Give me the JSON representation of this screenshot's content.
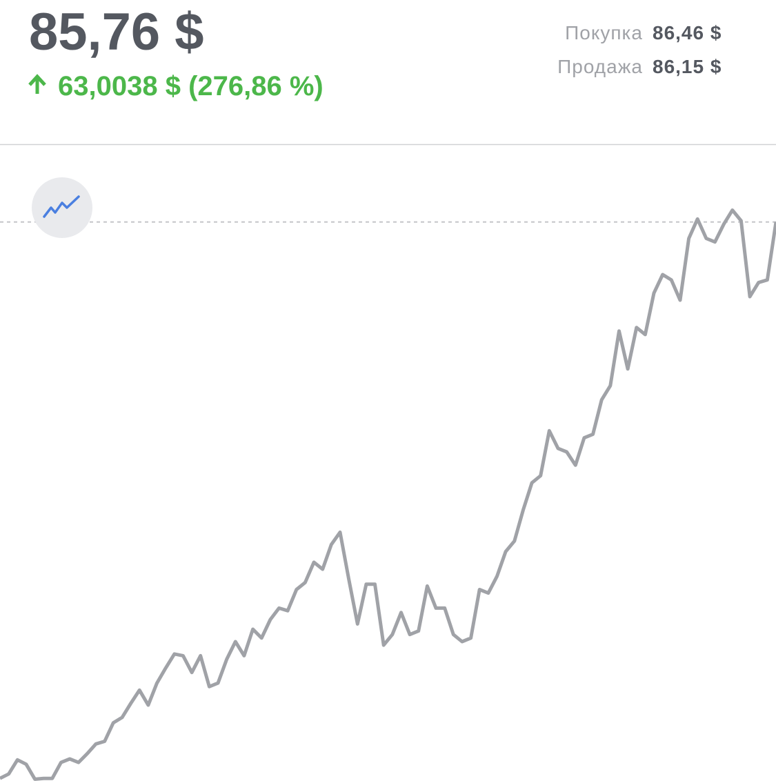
{
  "header": {
    "price": "85,76 $",
    "change": "63,0038 $ (276,86 %)"
  },
  "quotes": [
    {
      "label": "Покупка",
      "value": "86,46 $"
    },
    {
      "label": "Продажа",
      "value": "86,15 $"
    }
  ],
  "chart_data": {
    "type": "line",
    "color": "#a0a2a7",
    "ylim": [
      22.4,
      94.5
    ],
    "values": [
      22.7,
      23.2,
      24.8,
      24.3,
      22.6,
      22.7,
      22.7,
      24.5,
      24.9,
      24.5,
      25.5,
      26.6,
      26.9,
      29.0,
      29.6,
      31.2,
      32.7,
      31.0,
      33.5,
      35.2,
      36.8,
      36.6,
      34.7,
      36.6,
      33.1,
      33.5,
      36.2,
      38.2,
      36.6,
      39.6,
      38.6,
      40.7,
      42.0,
      41.7,
      44.1,
      44.9,
      47.2,
      46.4,
      49.2,
      50.6,
      45.3,
      40.2,
      44.7,
      44.7,
      37.8,
      39.0,
      41.5,
      39.0,
      39.4,
      44.5,
      42.0,
      42.0,
      39.0,
      38.2,
      38.6,
      44.1,
      43.7,
      45.6,
      48.4,
      49.6,
      53.1,
      56.2,
      57.0,
      62.1,
      60.1,
      59.7,
      58.2,
      61.3,
      61.7,
      65.6,
      67.2,
      73.4,
      69.1,
      73.8,
      73.0,
      77.7,
      79.8,
      79.2,
      76.9,
      83.9,
      86.1,
      83.9,
      83.5,
      85.5,
      87.1,
      85.9,
      77.3,
      78.9,
      79.2,
      85.76
    ]
  }
}
